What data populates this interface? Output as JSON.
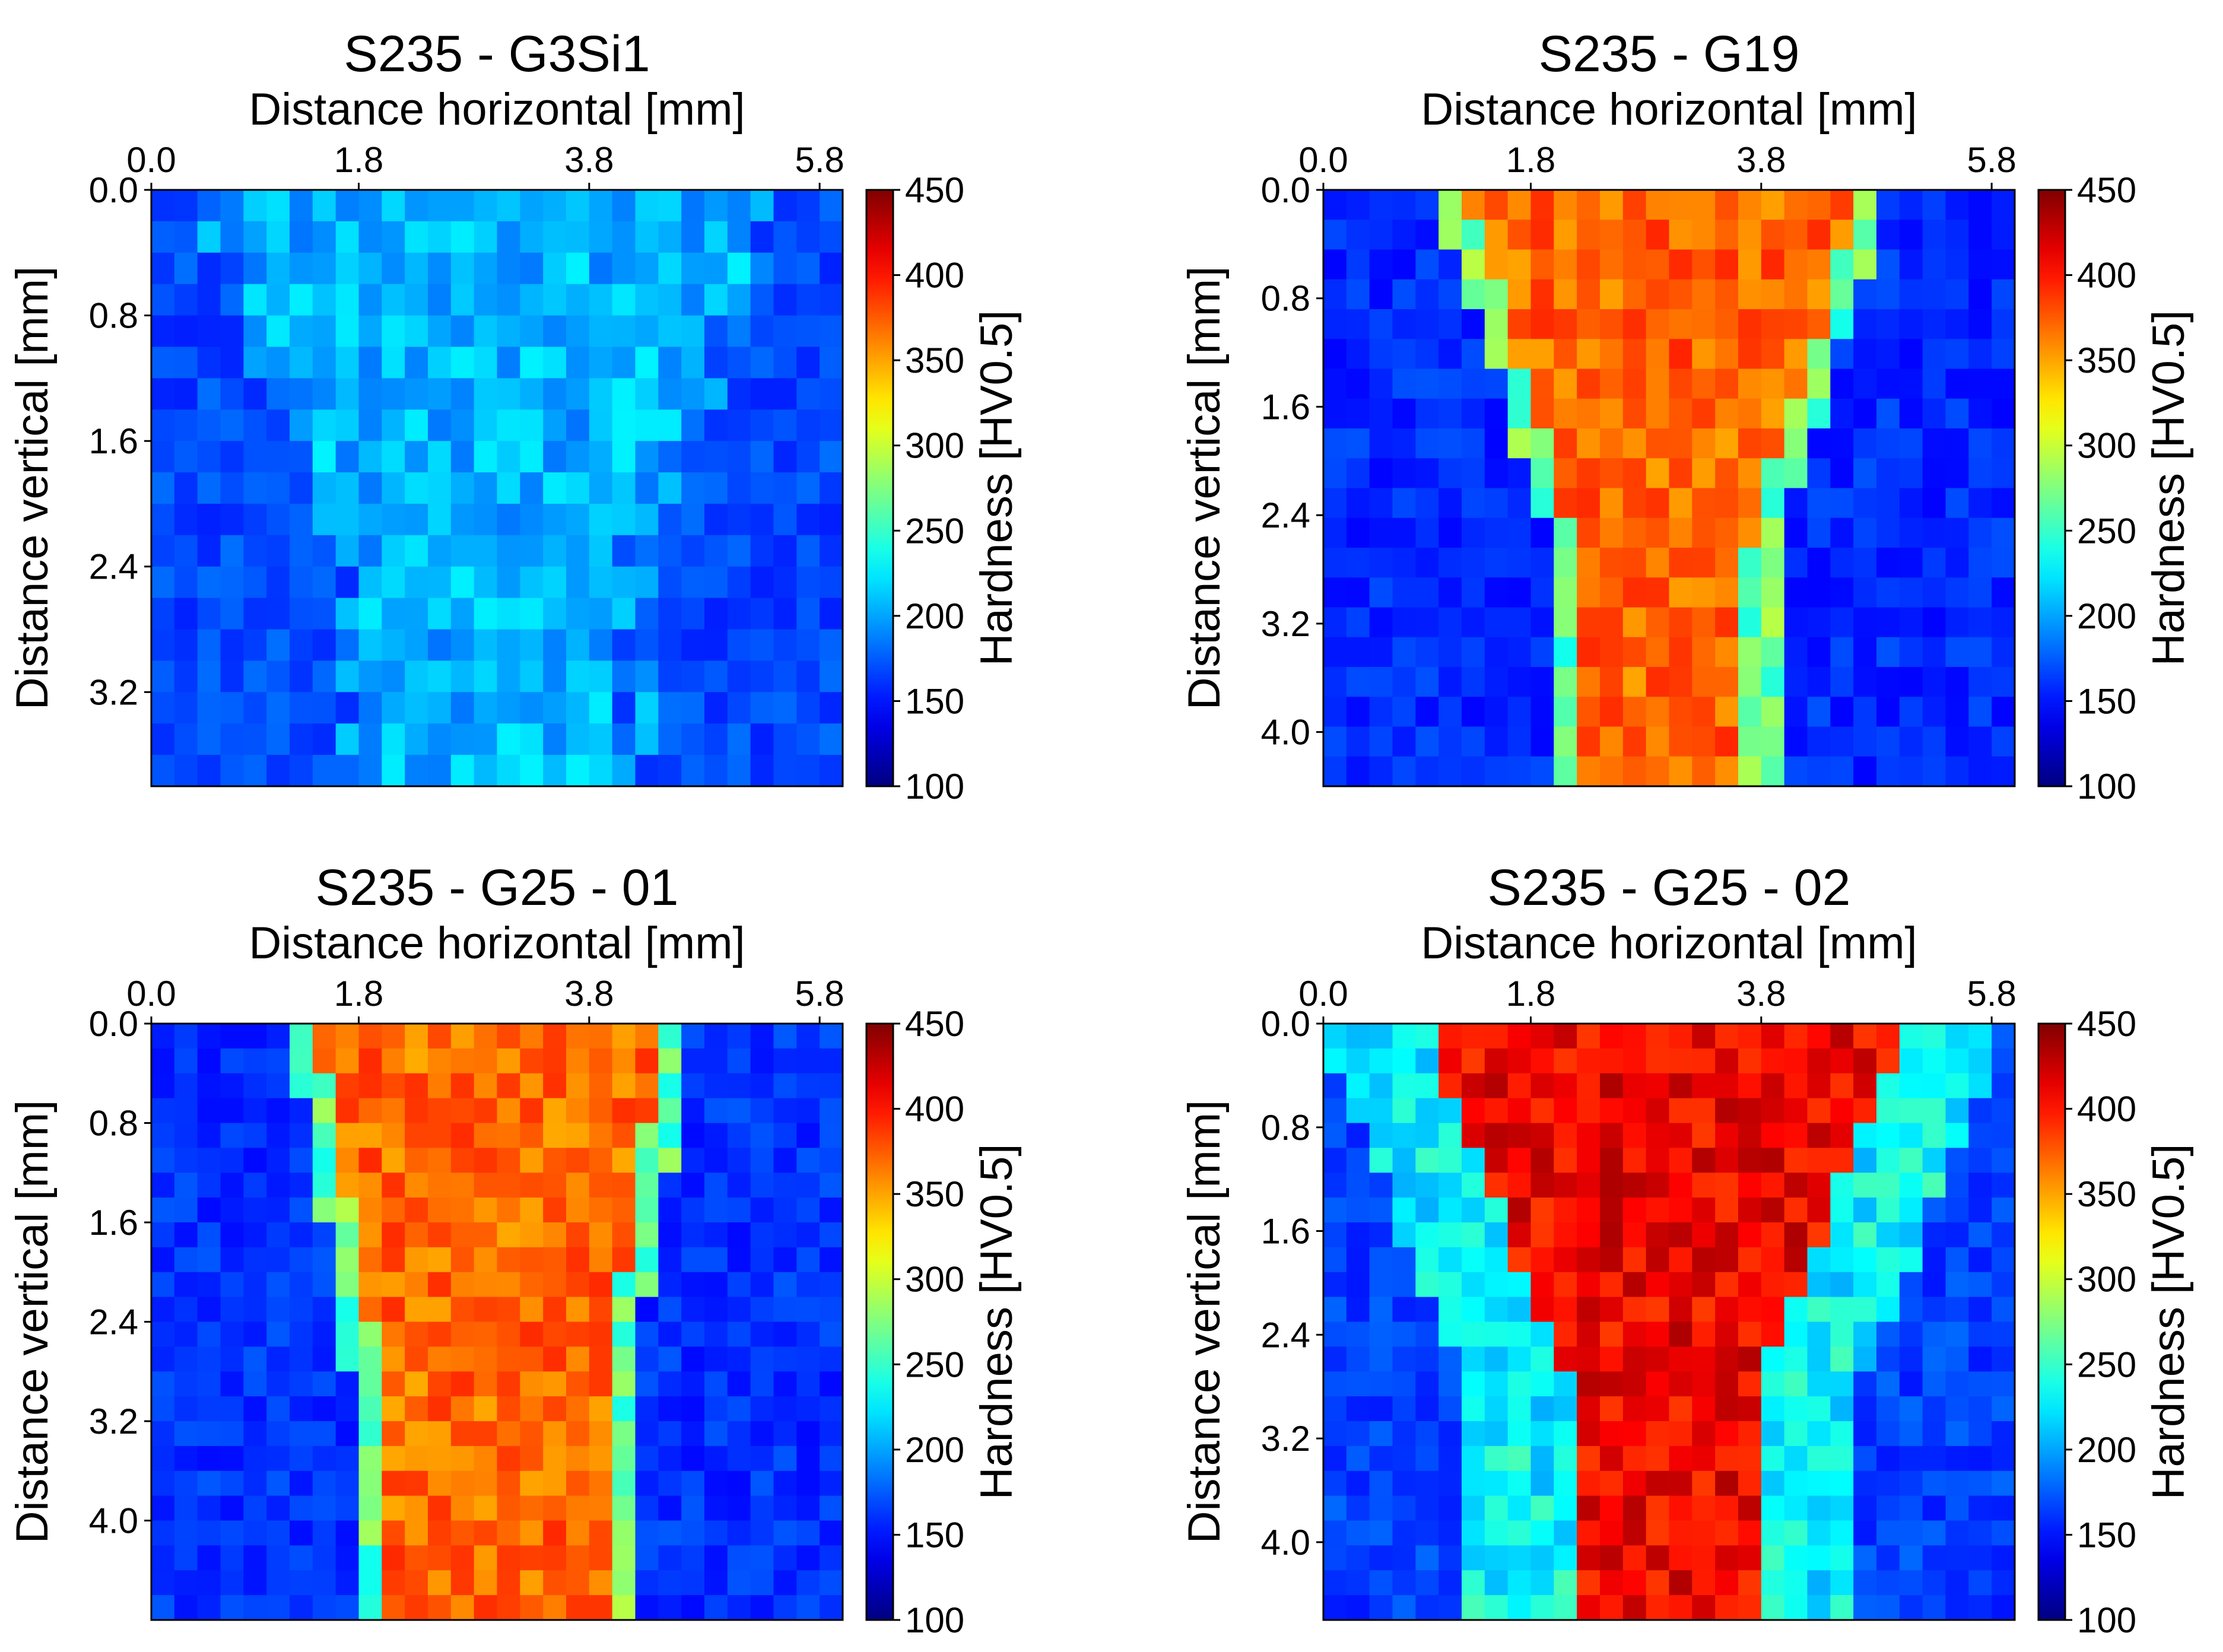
{
  "colorbar": {
    "label": "Hardness [HV0.5]",
    "min": 100,
    "max": 450,
    "ticks": [
      "450",
      "400",
      "350",
      "300",
      "250",
      "200",
      "150",
      "100"
    ]
  },
  "chart_data": [
    {
      "type": "heatmap",
      "title": "S235 - G3Si1",
      "xlabel": "Distance horizontal [mm]",
      "ylabel": "Distance vertical [mm]",
      "xticks": [
        "0.0",
        "1.8",
        "3.8",
        "5.8"
      ],
      "yticks": [
        "0.0",
        "0.8",
        "1.6",
        "2.4",
        "3.2"
      ],
      "xtick_values": [
        0.0,
        1.8,
        3.8,
        5.8
      ],
      "ytick_values": [
        0.0,
        0.8,
        1.6,
        2.4,
        3.2
      ],
      "xlim": [
        0.0,
        6.0
      ],
      "ylim": [
        0.0,
        3.8
      ],
      "grid": {
        "rows": 19,
        "cols": 30
      },
      "colorbar_range": [
        100,
        450
      ],
      "profile": {
        "base": 168,
        "top": 205,
        "top_width": 4.8,
        "bottom_width": 2.2,
        "noise": 14,
        "seed": 11
      }
    },
    {
      "type": "heatmap",
      "title": "S235 - G19",
      "xlabel": "Distance horizontal [mm]",
      "ylabel": "Distance vertical [mm]",
      "xticks": [
        "0.0",
        "1.8",
        "3.8",
        "5.8"
      ],
      "yticks": [
        "0.0",
        "0.8",
        "1.6",
        "2.4",
        "3.2",
        "4.0"
      ],
      "xtick_values": [
        0.0,
        1.8,
        3.8,
        5.8
      ],
      "ytick_values": [
        0.0,
        0.8,
        1.6,
        2.4,
        3.2,
        4.0
      ],
      "xlim": [
        0.0,
        6.0
      ],
      "ylim": [
        0.0,
        4.4
      ],
      "grid": {
        "rows": 20,
        "cols": 30
      },
      "colorbar_range": [
        100,
        450
      ],
      "profile": {
        "base": 158,
        "top": 372,
        "top_width": 3.4,
        "bottom_width": 1.4,
        "noise": 14,
        "seed": 23
      }
    },
    {
      "type": "heatmap",
      "title": "S235 - G25 - 01",
      "xlabel": "Distance horizontal [mm]",
      "ylabel": "Distance vertical [mm]",
      "xticks": [
        "0.0",
        "1.8",
        "3.8",
        "5.8"
      ],
      "yticks": [
        "0.0",
        "0.8",
        "1.6",
        "2.4",
        "3.2",
        "4.0"
      ],
      "xtick_values": [
        0.0,
        1.8,
        3.8,
        5.8
      ],
      "ytick_values": [
        0.0,
        0.8,
        1.6,
        2.4,
        3.2,
        4.0
      ],
      "xlim": [
        0.0,
        6.0
      ],
      "ylim": [
        0.0,
        4.8
      ],
      "grid": {
        "rows": 24,
        "cols": 30
      },
      "colorbar_range": [
        100,
        450
      ],
      "profile": {
        "base": 160,
        "top": 370,
        "top_width": 3.0,
        "bottom_width": 1.9,
        "noise": 14,
        "seed": 37
      }
    },
    {
      "type": "heatmap",
      "title": "S235 - G25 - 02",
      "xlabel": "Distance horizontal [mm]",
      "ylabel": "Distance vertical [mm]",
      "xticks": [
        "0.0",
        "1.8",
        "3.8",
        "5.8"
      ],
      "yticks": [
        "0.0",
        "0.8",
        "1.6",
        "2.4",
        "3.2",
        "4.0"
      ],
      "xtick_values": [
        0.0,
        1.8,
        3.8,
        5.8
      ],
      "ytick_values": [
        0.0,
        0.8,
        1.6,
        2.4,
        3.2,
        4.0
      ],
      "xlim": [
        0.0,
        6.0
      ],
      "ylim": [
        0.0,
        4.6
      ],
      "grid": {
        "rows": 24,
        "cols": 30
      },
      "colorbar_range": [
        100,
        450
      ],
      "profile": {
        "base": 165,
        "top": 410,
        "top_width": 4.1,
        "bottom_width": 1.6,
        "noise": 15,
        "seed": 53,
        "haz": 230
      }
    }
  ]
}
